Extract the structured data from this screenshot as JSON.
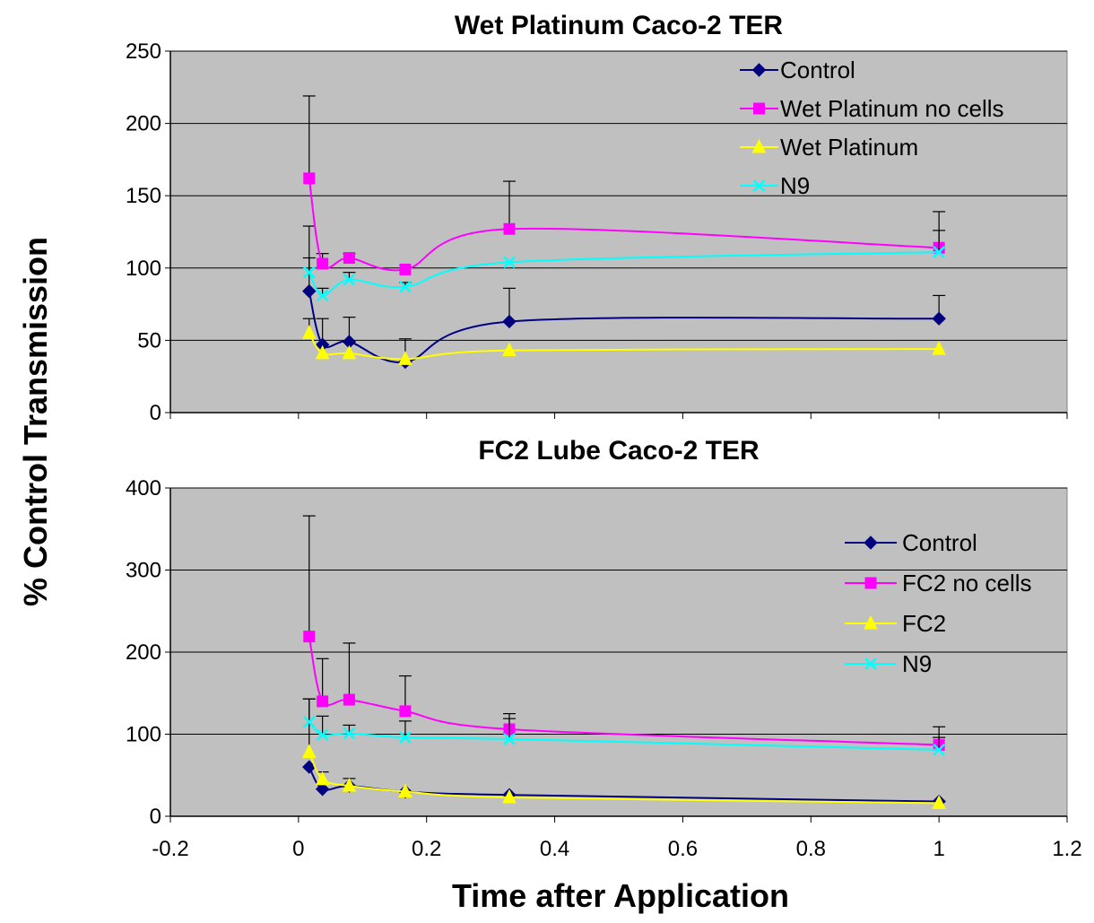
{
  "chart_data": [
    {
      "type": "line",
      "title": "Wet Platinum Caco-2 TER",
      "ylim": [
        0,
        250
      ],
      "yticks": [
        0,
        50,
        100,
        150,
        200,
        250
      ],
      "xlim": [
        -0.2,
        1.2
      ],
      "xticks": [
        -0.2,
        0,
        0.2,
        0.4,
        0.6,
        0.8,
        1,
        1.2
      ],
      "show_x_tick_labels": false,
      "grid": "horizontal",
      "legend_position": "top-right",
      "x": [
        0.0167,
        0.0375,
        0.0792,
        0.1667,
        0.3292,
        1.0
      ],
      "series": [
        {
          "name": "Control",
          "color": "#000080",
          "marker": "diamond",
          "values": [
            84,
            47,
            49,
            35,
            63,
            65
          ],
          "errors": [
            45,
            18,
            17,
            16,
            23,
            16
          ]
        },
        {
          "name": "Wet Platinum no cells",
          "color": "#FF00FF",
          "marker": "square",
          "values": [
            162,
            103,
            107,
            99,
            127,
            114
          ],
          "errors": [
            57,
            7,
            3,
            0,
            33,
            25
          ]
        },
        {
          "name": "Wet Platinum",
          "color": "#FFFF00",
          "marker": "triangle",
          "values": [
            55,
            41,
            41,
            37,
            43,
            44
          ],
          "errors": [
            10,
            0,
            0,
            0,
            0,
            0
          ]
        },
        {
          "name": "N9",
          "color": "#00FFFF",
          "marker": "x",
          "values": [
            97,
            81,
            92,
            87,
            104,
            111
          ],
          "errors": [
            10,
            5,
            5,
            3,
            0,
            15
          ]
        }
      ]
    },
    {
      "type": "line",
      "title": "FC2 Lube Caco-2 TER",
      "ylim": [
        0,
        400
      ],
      "yticks": [
        0,
        100,
        200,
        300,
        400
      ],
      "xlim": [
        -0.2,
        1.2
      ],
      "xticks": [
        -0.2,
        0,
        0.2,
        0.4,
        0.6,
        0.8,
        1,
        1.2
      ],
      "xtick_labels": [
        "-0.2",
        "0",
        "0.2",
        "0.4",
        "0.6",
        "0.8",
        "1",
        "1.2"
      ],
      "show_x_tick_labels": true,
      "grid": "horizontal",
      "legend_position": "right",
      "x": [
        0.0167,
        0.0375,
        0.0792,
        0.1667,
        0.3292,
        1.0
      ],
      "series": [
        {
          "name": "Control",
          "color": "#000080",
          "marker": "diamond",
          "values": [
            60,
            33,
            37,
            30,
            26,
            18
          ],
          "errors": [
            0,
            0,
            0,
            0,
            0,
            0
          ]
        },
        {
          "name": "FC2 no cells",
          "color": "#FF00FF",
          "marker": "square",
          "values": [
            219,
            140,
            142,
            128,
            106,
            87
          ],
          "errors": [
            147,
            52,
            69,
            43,
            19,
            22
          ]
        },
        {
          "name": "FC2",
          "color": "#FFFF00",
          "marker": "triangle",
          "values": [
            78,
            45,
            37,
            30,
            23,
            16
          ],
          "errors": [
            65,
            9,
            9,
            0,
            0,
            0
          ]
        },
        {
          "name": "N9",
          "color": "#00FFFF",
          "marker": "x",
          "values": [
            115,
            99,
            101,
            96,
            94,
            81
          ],
          "errors": [
            28,
            23,
            10,
            20,
            25,
            15
          ]
        }
      ]
    }
  ],
  "ylabel": "% Control Transmission",
  "xlabel": "Time after Application"
}
